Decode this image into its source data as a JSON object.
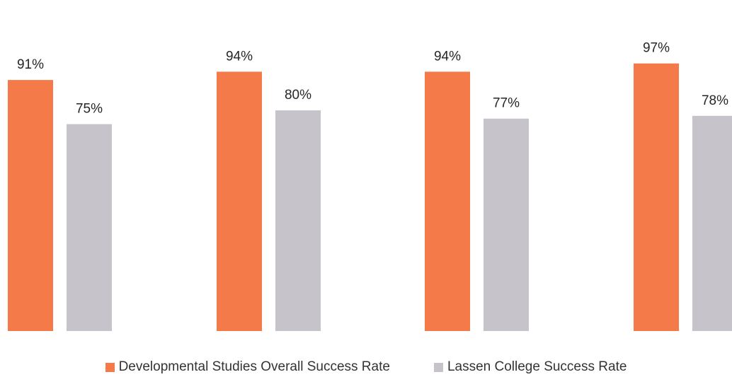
{
  "chart_data": {
    "type": "bar",
    "title": "",
    "xlabel": "",
    "ylabel": "",
    "categories": [
      "",
      "",
      "",
      ""
    ],
    "ylim": [
      0,
      100
    ],
    "grid": false,
    "legend_position": "bottom",
    "series": [
      {
        "name": "Developmental Studies Overall Success Rate",
        "values": [
          91,
          94,
          94,
          97
        ],
        "labels": [
          "91%",
          "94%",
          "94%",
          "97%"
        ],
        "color": "#F47A4A"
      },
      {
        "name": "Lassen College Success Rate",
        "values": [
          75,
          80,
          77,
          78
        ],
        "labels": [
          "75%",
          "80%",
          "77%",
          "78%"
        ],
        "color": "#C6C3CB"
      }
    ]
  }
}
